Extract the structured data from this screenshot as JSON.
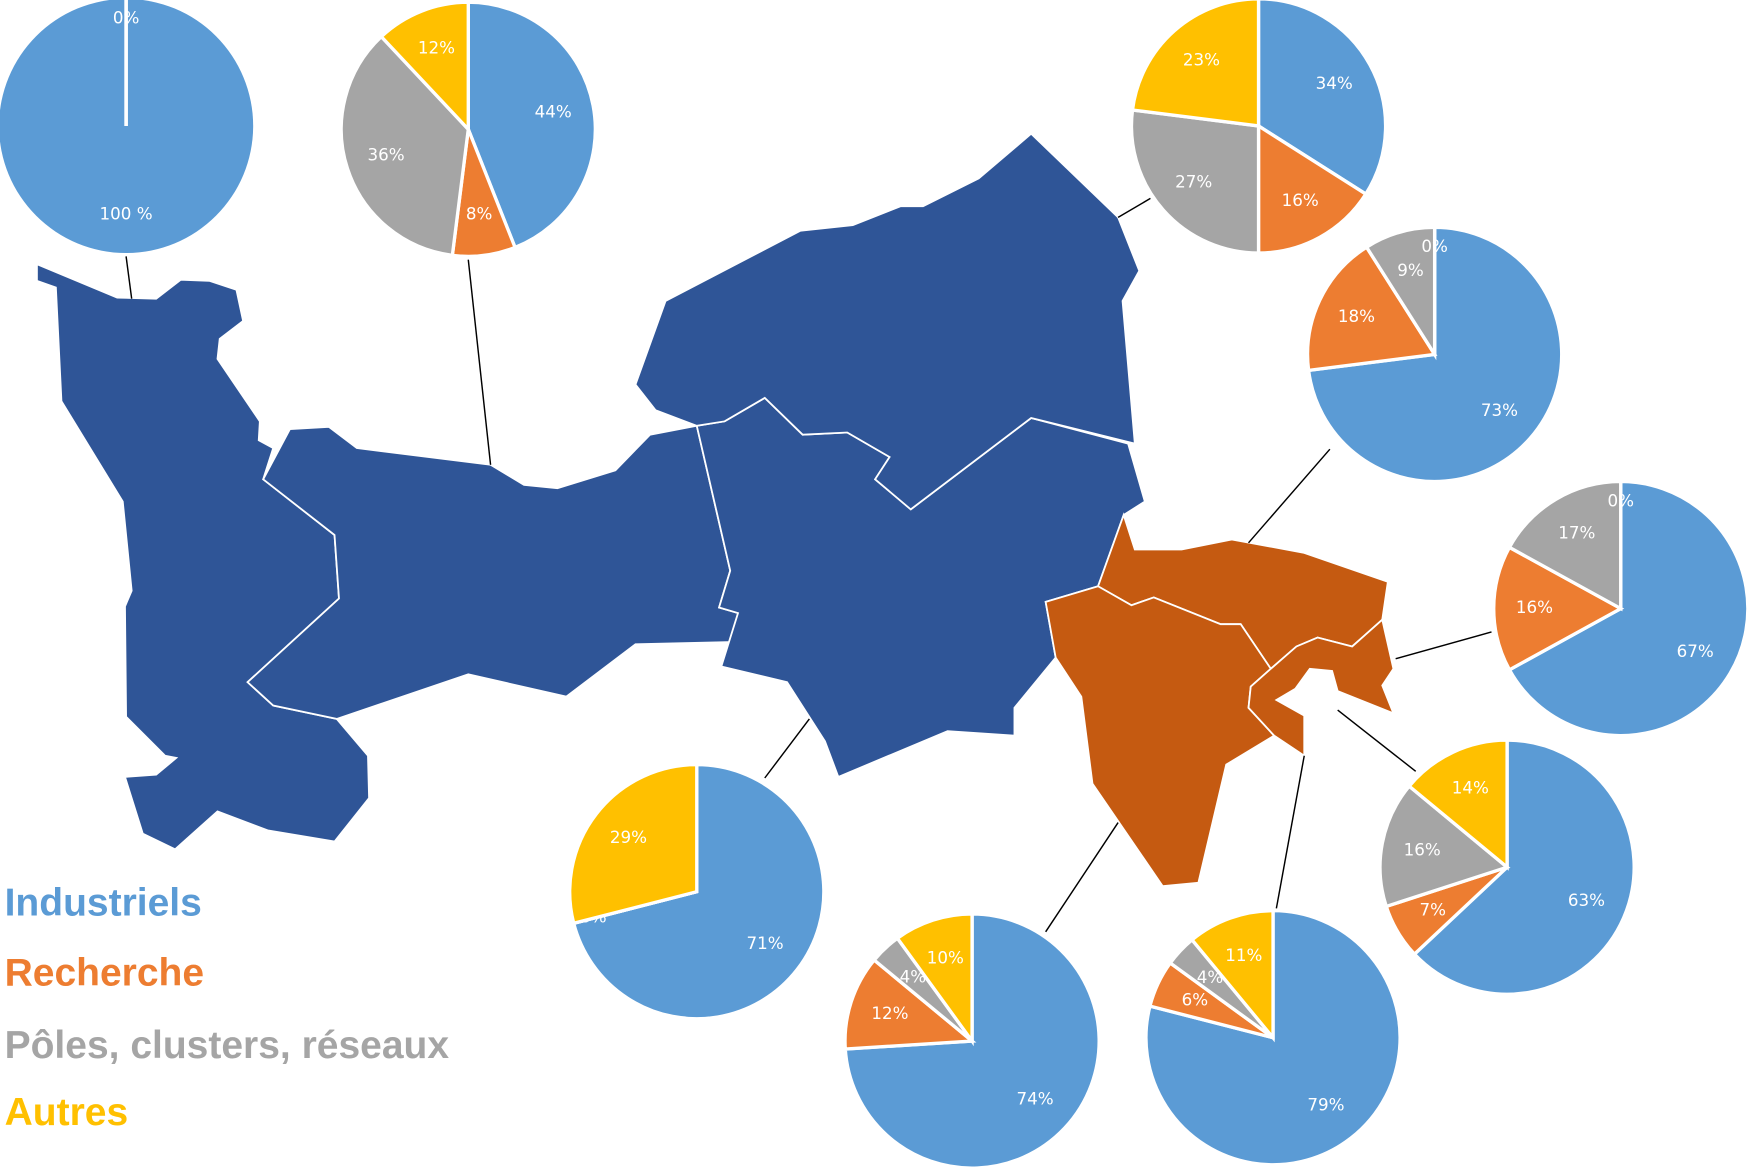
{
  "chart_data": [
    {
      "type": "pie",
      "categories": [
        "Industriels",
        "Recherche",
        "Pôles, clusters, réseaux",
        "Autres"
      ],
      "colors": [
        "#5b9bd5",
        "#ed7d31",
        "#a5a5a5",
        "#ffc000"
      ],
      "values": [
        100,
        0,
        0,
        0
      ],
      "value_labels": [
        "100 %",
        "0%",
        null,
        null
      ]
    },
    {
      "type": "pie",
      "categories": [
        "Industriels",
        "Recherche",
        "Pôles, clusters, réseaux",
        "Autres"
      ],
      "colors": [
        "#5b9bd5",
        "#ed7d31",
        "#a5a5a5",
        "#ffc000"
      ],
      "values": [
        44,
        8,
        36,
        12
      ],
      "value_labels": [
        "44%",
        "8%",
        "36%",
        "12%"
      ]
    },
    {
      "type": "pie",
      "categories": [
        "Industriels",
        "Recherche",
        "Pôles, clusters, réseaux",
        "Autres"
      ],
      "colors": [
        "#5b9bd5",
        "#ed7d31",
        "#a5a5a5",
        "#ffc000"
      ],
      "values": [
        34,
        16,
        27,
        23
      ],
      "value_labels": [
        "34%",
        "16%",
        "27%",
        "23%"
      ]
    },
    {
      "type": "pie",
      "categories": [
        "Industriels",
        "Recherche",
        "Pôles, clusters, réseaux",
        "Autres"
      ],
      "colors": [
        "#5b9bd5",
        "#ed7d31",
        "#a5a5a5",
        "#ffc000"
      ],
      "values": [
        73,
        18,
        9,
        0
      ],
      "value_labels": [
        "73%",
        "18%",
        "9%",
        "0%"
      ]
    },
    {
      "type": "pie",
      "categories": [
        "Industriels",
        "Recherche",
        "Pôles, clusters, réseaux",
        "Autres"
      ],
      "colors": [
        "#5b9bd5",
        "#ed7d31",
        "#a5a5a5",
        "#ffc000"
      ],
      "values": [
        67,
        16,
        17,
        0
      ],
      "value_labels": [
        "67%",
        "16%",
        "17%",
        "0%"
      ]
    },
    {
      "type": "pie",
      "categories": [
        "Industriels",
        "Recherche",
        "Pôles, clusters, réseaux",
        "Autres"
      ],
      "colors": [
        "#5b9bd5",
        "#ed7d31",
        "#a5a5a5",
        "#ffc000"
      ],
      "values": [
        63,
        7,
        16,
        14
      ],
      "value_labels": [
        "63%",
        "7%",
        "16%",
        "14%"
      ]
    },
    {
      "type": "pie",
      "categories": [
        "Industriels",
        "Recherche",
        "Pôles, clusters, réseaux",
        "Autres"
      ],
      "colors": [
        "#5b9bd5",
        "#ed7d31",
        "#a5a5a5",
        "#ffc000"
      ],
      "values": [
        71,
        0,
        0,
        29
      ],
      "value_labels": [
        "71%",
        "0%",
        null,
        "29%"
      ]
    },
    {
      "type": "pie",
      "categories": [
        "Industriels",
        "Recherche",
        "Pôles, clusters, réseaux",
        "Autres"
      ],
      "colors": [
        "#5b9bd5",
        "#ed7d31",
        "#a5a5a5",
        "#ffc000"
      ],
      "values": [
        74,
        12,
        4,
        10
      ],
      "value_labels": [
        "74%",
        "12%",
        "4%",
        "10%"
      ]
    },
    {
      "type": "pie",
      "categories": [
        "Industriels",
        "Recherche",
        "Pôles, clusters, réseaux",
        "Autres"
      ],
      "colors": [
        "#5b9bd5",
        "#ed7d31",
        "#a5a5a5",
        "#ffc000"
      ],
      "values": [
        79,
        6,
        4,
        11
      ],
      "value_labels": [
        "79%",
        "6%",
        "4%",
        "11%"
      ]
    }
  ]
}
